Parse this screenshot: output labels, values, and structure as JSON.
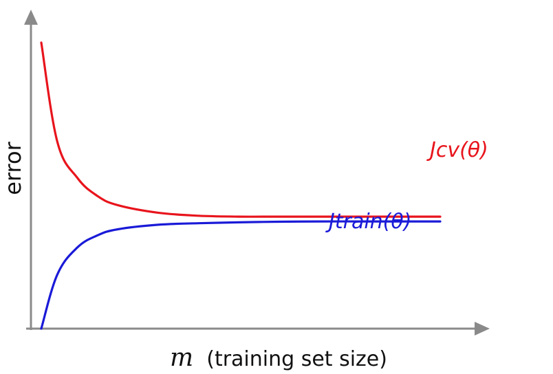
{
  "chart_data": {
    "type": "line",
    "xlabel_var": "m",
    "xlabel_rest": "(training set size)",
    "ylabel": "error",
    "grid": false,
    "x": [
      1,
      5,
      10,
      15,
      20,
      30,
      40,
      50,
      60,
      70,
      80,
      90,
      100
    ],
    "series": [
      {
        "name": "Jcv(θ)",
        "color": "#e8141c",
        "values": [
          0.95,
          0.62,
          0.5,
          0.44,
          0.41,
          0.385,
          0.375,
          0.372,
          0.372,
          0.372,
          0.372,
          0.372,
          0.372
        ]
      },
      {
        "name": "Jtrain(θ)",
        "color": "#1a1ad8",
        "values": [
          0.0,
          0.18,
          0.27,
          0.31,
          0.33,
          0.345,
          0.35,
          0.353,
          0.355,
          0.356,
          0.356,
          0.356,
          0.356
        ]
      }
    ],
    "xlim": [
      0,
      110
    ],
    "ylim": [
      0,
      1.0
    ]
  }
}
